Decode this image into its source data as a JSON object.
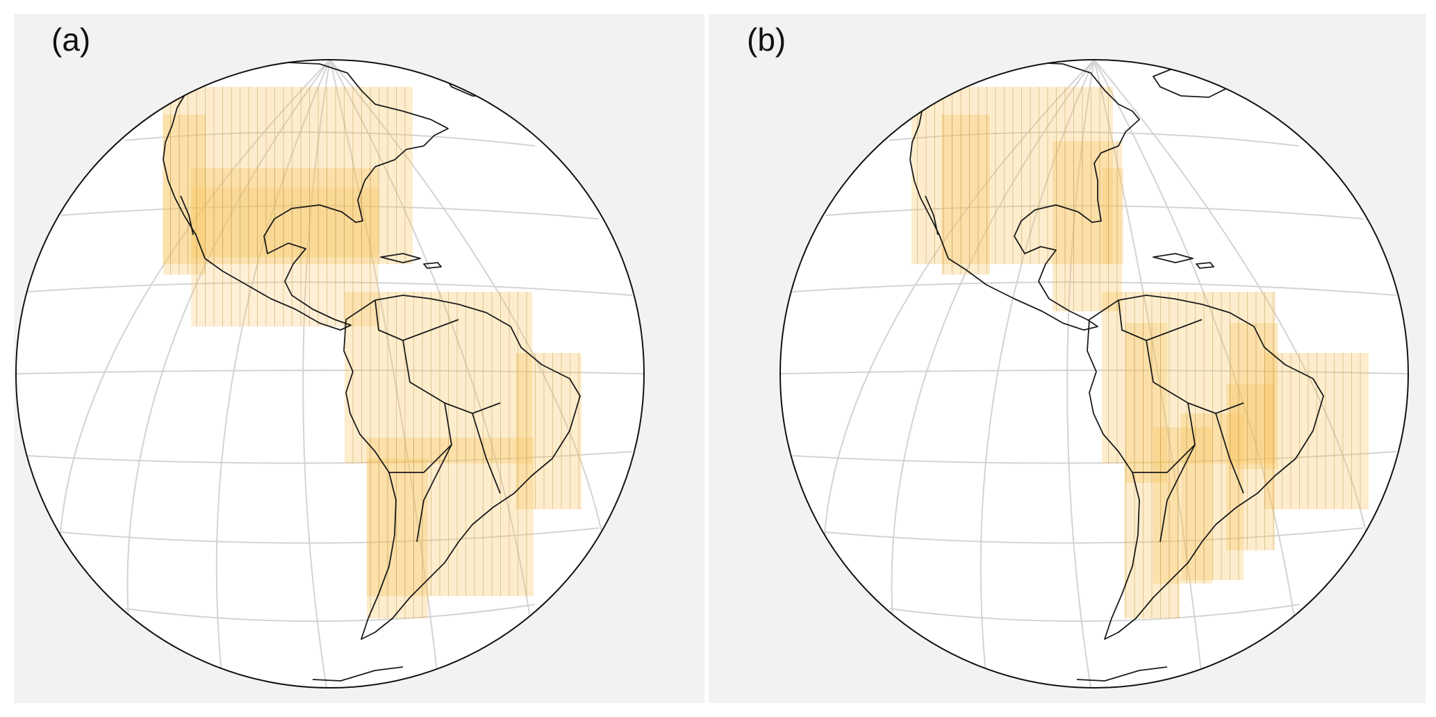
{
  "figure": {
    "panels": [
      {
        "label": "(a)"
      },
      {
        "label": "(b)"
      }
    ]
  },
  "colors": {
    "panel_background": "#f2f2f2",
    "globe_fill": "#ffffff",
    "graticule": "#d3d3d3",
    "coastline": "#1a1a1a",
    "footprint_fill": "#f7c45a",
    "footprint_stroke": "#c9a15a"
  },
  "map": {
    "projection": "orthographic",
    "center": "Americas",
    "graticule": true,
    "footprint_style": "semi-transparent striped tiles"
  }
}
